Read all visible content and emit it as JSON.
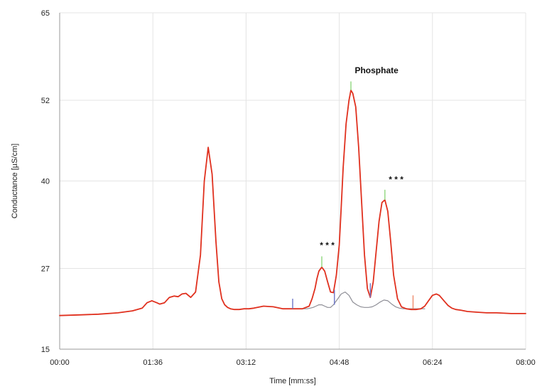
{
  "colors": {
    "signal": "#e0301e",
    "baseline": "#8e8e96",
    "grid": "#e4e4e4",
    "axis": "#9a9a9a",
    "marker_start": "#6c76c8",
    "marker_top": "#8fd77e",
    "marker_end": "#ee8a6c"
  },
  "chart_data": {
    "type": "line",
    "title": "",
    "xlabel": "Time [mm:ss]",
    "ylabel": "Conductance [µS/cm]",
    "xlim": [
      0,
      480
    ],
    "ylim": [
      15,
      65
    ],
    "x_ticks": [
      0,
      96,
      192,
      288,
      384,
      480
    ],
    "x_tick_labels": [
      "00:00",
      "01:36",
      "03:12",
      "04:48",
      "06:24",
      "08:00"
    ],
    "y_ticks": [
      15,
      27,
      40,
      52,
      65
    ],
    "y_tick_labels": [
      "15",
      "27",
      "40",
      "52",
      "65"
    ],
    "grid": true,
    "legend": "none",
    "series": [
      {
        "color": "#e0301e",
        "x": [
          0,
          20,
          40,
          60,
          75,
          85,
          90,
          95,
          100,
          103,
          108,
          113,
          118,
          122,
          126,
          130,
          135,
          140,
          145,
          149,
          153,
          157,
          161,
          164,
          167,
          170,
          173,
          176,
          180,
          185,
          190,
          195,
          200,
          210,
          220,
          230,
          240,
          250,
          257,
          260,
          263,
          265,
          267,
          270,
          273,
          276,
          279,
          282,
          285,
          288,
          290,
          292,
          295,
          298,
          300,
          302,
          305,
          308,
          311,
          314,
          317,
          320,
          323,
          326,
          329,
          332,
          335,
          338,
          341,
          344,
          348,
          352,
          357,
          362,
          367,
          372,
          376,
          380,
          384,
          388,
          391,
          394,
          397,
          400,
          404,
          408,
          413,
          420,
          430,
          440,
          450,
          465,
          480
        ],
        "y": [
          20.0,
          20.1,
          20.2,
          20.4,
          20.7,
          21.1,
          21.9,
          22.2,
          21.9,
          21.7,
          21.9,
          22.7,
          22.9,
          22.8,
          23.2,
          23.3,
          22.7,
          23.5,
          29.0,
          40.0,
          45.0,
          41.0,
          31.0,
          25.0,
          22.5,
          21.6,
          21.2,
          21.0,
          20.9,
          20.9,
          21.0,
          21.0,
          21.1,
          21.4,
          21.3,
          21.0,
          21.0,
          21.0,
          21.4,
          22.5,
          24.0,
          25.5,
          26.6,
          27.2,
          26.6,
          25.0,
          23.5,
          23.4,
          26.0,
          30.5,
          36.0,
          42.0,
          48.5,
          52.0,
          53.5,
          53.0,
          51.0,
          45.0,
          37.0,
          29.0,
          24.0,
          22.7,
          25.0,
          29.5,
          34.0,
          36.8,
          37.2,
          35.5,
          31.0,
          26.0,
          22.5,
          21.3,
          21.0,
          20.9,
          20.9,
          21.0,
          21.4,
          22.2,
          23.0,
          23.2,
          23.0,
          22.5,
          22.0,
          21.5,
          21.1,
          20.9,
          20.8,
          20.6,
          20.5,
          20.4,
          20.4,
          20.3,
          20.3
        ]
      },
      {
        "color": "#8e8e96",
        "x": [
          240,
          245,
          250,
          255,
          258,
          261,
          264,
          267,
          270,
          273,
          276,
          279,
          282,
          286,
          290,
          294,
          298,
          302,
          306,
          310,
          314,
          318,
          322,
          326,
          330,
          334,
          338,
          342,
          346,
          350,
          354,
          358,
          362,
          366,
          370,
          374,
          376
        ],
        "y": [
          21.0,
          21.0,
          21.0,
          21.0,
          21.1,
          21.2,
          21.4,
          21.6,
          21.6,
          21.4,
          21.2,
          21.2,
          21.6,
          22.4,
          23.2,
          23.5,
          23.0,
          22.0,
          21.6,
          21.3,
          21.2,
          21.2,
          21.3,
          21.6,
          22.0,
          22.3,
          22.2,
          21.7,
          21.3,
          21.1,
          21.0,
          21.0,
          21.0,
          21.0,
          21.0,
          21.0,
          21.0
        ]
      }
    ],
    "peak_markers": [
      {
        "x": 240,
        "y": 21.0,
        "top": 22.5,
        "kind": "start"
      },
      {
        "x": 270,
        "y": 27.2,
        "top": 28.8,
        "kind": "top"
      },
      {
        "x": 283,
        "y": 21.6,
        "top": 23.8,
        "kind": "start"
      },
      {
        "x": 300,
        "y": 53.5,
        "top": 54.8,
        "kind": "top"
      },
      {
        "x": 320,
        "y": 22.7,
        "top": 24.8,
        "kind": "start"
      },
      {
        "x": 335,
        "y": 37.2,
        "top": 38.7,
        "kind": "top"
      },
      {
        "x": 364,
        "y": 21.0,
        "top": 23.0,
        "kind": "end"
      }
    ],
    "annotations": [
      {
        "text": "* * *",
        "x": 268,
        "y": 30.0
      },
      {
        "text": "Phosphate",
        "x": 304,
        "y": 56.0
      },
      {
        "text": "* * *",
        "x": 339,
        "y": 39.8
      }
    ]
  }
}
